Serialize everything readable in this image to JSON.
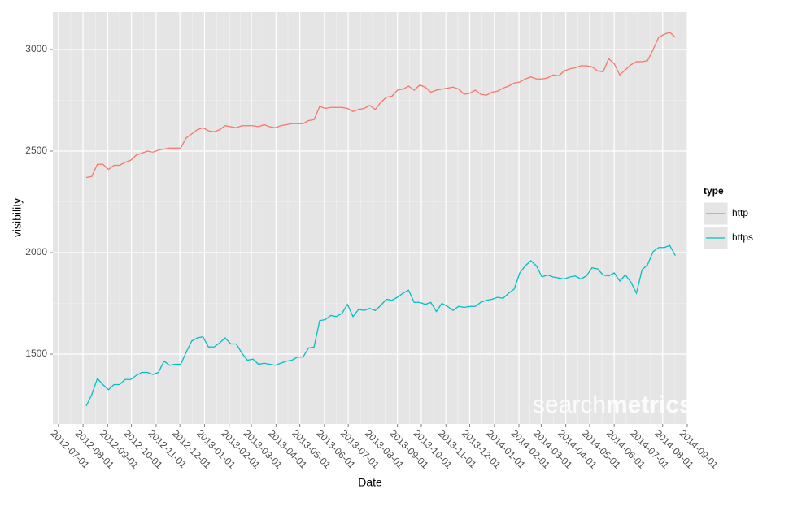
{
  "chart_data": {
    "type": "line",
    "x_label": "Date",
    "y_label": "visibility",
    "legend_title": "type",
    "legend_position": "right",
    "grid": true,
    "watermark": [
      "search",
      "metrics"
    ],
    "xlim": [
      "2012-06-24",
      "2014-09-01"
    ],
    "xticks": [
      "2012-07-01",
      "2012-08-01",
      "2012-09-01",
      "2012-10-01",
      "2012-11-01",
      "2012-12-01",
      "2013-01-01",
      "2013-02-01",
      "2013-03-01",
      "2013-04-01",
      "2013-05-01",
      "2013-06-01",
      "2013-07-01",
      "2013-08-01",
      "2013-09-01",
      "2013-10-01",
      "2013-11-01",
      "2013-12-01",
      "2014-01-01",
      "2014-02-01",
      "2014-03-01",
      "2014-04-01",
      "2014-05-01",
      "2014-06-01",
      "2014-07-01",
      "2014-08-01",
      "2014-09-01"
    ],
    "ylim": [
      1156,
      3184
    ],
    "yticks": [
      1500,
      2000,
      2500,
      3000
    ],
    "x": [
      "2012-08-05",
      "2012-08-12",
      "2012-08-19",
      "2012-08-26",
      "2012-09-02",
      "2012-09-09",
      "2012-09-16",
      "2012-09-23",
      "2012-09-30",
      "2012-10-07",
      "2012-10-14",
      "2012-10-21",
      "2012-10-28",
      "2012-11-04",
      "2012-11-11",
      "2012-11-18",
      "2012-11-25",
      "2012-12-02",
      "2012-12-09",
      "2012-12-16",
      "2012-12-23",
      "2012-12-30",
      "2013-01-06",
      "2013-01-13",
      "2013-01-20",
      "2013-01-27",
      "2013-02-03",
      "2013-02-10",
      "2013-02-17",
      "2013-02-24",
      "2013-03-03",
      "2013-03-10",
      "2013-03-17",
      "2013-03-24",
      "2013-03-31",
      "2013-04-07",
      "2013-04-14",
      "2013-04-21",
      "2013-04-28",
      "2013-05-05",
      "2013-05-12",
      "2013-05-19",
      "2013-05-26",
      "2013-06-02",
      "2013-06-09",
      "2013-06-16",
      "2013-06-23",
      "2013-06-30",
      "2013-07-07",
      "2013-07-14",
      "2013-07-21",
      "2013-07-28",
      "2013-08-04",
      "2013-08-11",
      "2013-08-18",
      "2013-08-25",
      "2013-09-01",
      "2013-09-08",
      "2013-09-15",
      "2013-09-22",
      "2013-09-29",
      "2013-10-06",
      "2013-10-13",
      "2013-10-20",
      "2013-10-27",
      "2013-11-03",
      "2013-11-10",
      "2013-11-17",
      "2013-11-24",
      "2013-12-01",
      "2013-12-08",
      "2013-12-15",
      "2013-12-22",
      "2013-12-29",
      "2014-01-05",
      "2014-01-12",
      "2014-01-19",
      "2014-01-26",
      "2014-02-02",
      "2014-02-09",
      "2014-02-16",
      "2014-02-23",
      "2014-03-02",
      "2014-03-09",
      "2014-03-16",
      "2014-03-23",
      "2014-03-30",
      "2014-04-06",
      "2014-04-13",
      "2014-04-20",
      "2014-04-27",
      "2014-05-04",
      "2014-05-11",
      "2014-05-18",
      "2014-05-25",
      "2014-06-01",
      "2014-06-08",
      "2014-06-15",
      "2014-06-22",
      "2014-06-29",
      "2014-07-06",
      "2014-07-13",
      "2014-07-20",
      "2014-07-27",
      "2014-08-03",
      "2014-08-10",
      "2014-08-17"
    ],
    "series": [
      {
        "name": "http",
        "color": "#f8766d",
        "values": [
          2370,
          2375,
          2435,
          2435,
          2410,
          2430,
          2430,
          2445,
          2455,
          2480,
          2490,
          2500,
          2495,
          2505,
          2510,
          2515,
          2515,
          2515,
          2565,
          2585,
          2605,
          2615,
          2600,
          2595,
          2605,
          2625,
          2620,
          2615,
          2625,
          2625,
          2625,
          2620,
          2630,
          2620,
          2615,
          2625,
          2630,
          2635,
          2635,
          2635,
          2650,
          2655,
          2720,
          2710,
          2715,
          2715,
          2715,
          2710,
          2695,
          2705,
          2710,
          2725,
          2705,
          2740,
          2765,
          2770,
          2800,
          2805,
          2820,
          2800,
          2825,
          2815,
          2790,
          2800,
          2805,
          2810,
          2815,
          2805,
          2780,
          2785,
          2800,
          2780,
          2775,
          2790,
          2795,
          2810,
          2820,
          2835,
          2840,
          2855,
          2865,
          2855,
          2855,
          2860,
          2875,
          2870,
          2895,
          2905,
          2910,
          2920,
          2920,
          2915,
          2895,
          2890,
          2955,
          2930,
          2875,
          2900,
          2925,
          2940,
          2940,
          2945,
          3000,
          3060,
          3075,
          3085,
          3060
        ]
      },
      {
        "name": "https",
        "color": "#00bfc4",
        "values": [
          1245,
          1300,
          1380,
          1350,
          1325,
          1350,
          1350,
          1375,
          1375,
          1395,
          1410,
          1410,
          1400,
          1410,
          1465,
          1445,
          1450,
          1450,
          1510,
          1565,
          1580,
          1585,
          1535,
          1535,
          1555,
          1580,
          1550,
          1550,
          1505,
          1470,
          1475,
          1450,
          1455,
          1450,
          1445,
          1455,
          1465,
          1470,
          1485,
          1485,
          1530,
          1535,
          1665,
          1670,
          1690,
          1685,
          1700,
          1745,
          1685,
          1720,
          1715,
          1725,
          1715,
          1740,
          1770,
          1765,
          1780,
          1800,
          1815,
          1755,
          1755,
          1745,
          1755,
          1710,
          1750,
          1735,
          1715,
          1735,
          1730,
          1735,
          1735,
          1755,
          1765,
          1770,
          1780,
          1775,
          1800,
          1820,
          1900,
          1935,
          1960,
          1935,
          1880,
          1890,
          1880,
          1875,
          1870,
          1880,
          1885,
          1870,
          1885,
          1925,
          1920,
          1890,
          1885,
          1900,
          1860,
          1890,
          1855,
          1800,
          1915,
          1940,
          2005,
          2025,
          2025,
          2035,
          1985
        ]
      }
    ]
  }
}
